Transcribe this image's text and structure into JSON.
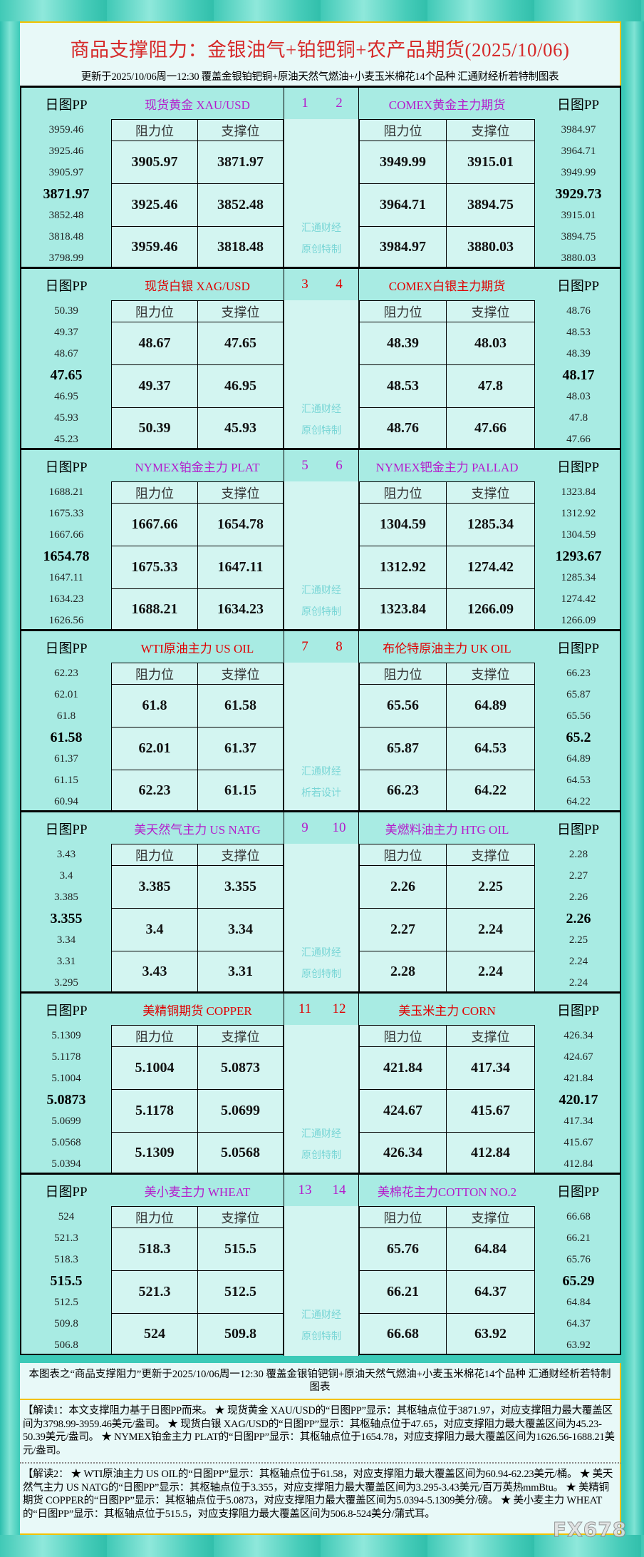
{
  "header": {
    "title": "商品支撑阻力：金银油气+铂钯铜+农产品期货(2025/10/06)",
    "subtitle": "更新于2025/10/06周一12:30  覆盖金银铂钯铜+原油天然气燃油+小麦玉米棉花14个品种  汇通财经析若特制图表"
  },
  "labels": {
    "pp": "日图PP",
    "resistance": "阻力位",
    "support": "支撑位"
  },
  "colors": {
    "purple": "#b41ccc",
    "red": "#e00000",
    "side_bg": "#a8ebe3",
    "cell_bg": "#d3f5f1"
  },
  "blocks": [
    {
      "color": "purple",
      "watermark": [
        "汇通财经",
        "原创特制"
      ],
      "left": {
        "name": "现货黄金 XAU/USD",
        "num": "1",
        "pp": [
          "3959.46",
          "3925.46",
          "3905.97",
          "3871.97",
          "3852.48",
          "3818.48",
          "3798.99"
        ],
        "res": [
          "3905.97",
          "3925.46",
          "3959.46"
        ],
        "sup": [
          "3871.97",
          "3852.48",
          "3818.48"
        ]
      },
      "right": {
        "name": "COMEX黄金主力期货",
        "num": "2",
        "pp": [
          "3984.97",
          "3964.71",
          "3949.99",
          "3929.73",
          "3915.01",
          "3894.75",
          "3880.03"
        ],
        "res": [
          "3949.99",
          "3964.71",
          "3984.97"
        ],
        "sup": [
          "3915.01",
          "3894.75",
          "3880.03"
        ]
      }
    },
    {
      "color": "red",
      "watermark": [
        "汇通财经",
        "原创特制"
      ],
      "left": {
        "name": "现货白银 XAG/USD",
        "num": "3",
        "pp": [
          "50.39",
          "49.37",
          "48.67",
          "47.65",
          "46.95",
          "45.93",
          "45.23"
        ],
        "res": [
          "48.67",
          "49.37",
          "50.39"
        ],
        "sup": [
          "47.65",
          "46.95",
          "45.93"
        ]
      },
      "right": {
        "name": "COMEX白银主力期货",
        "num": "4",
        "pp": [
          "48.76",
          "48.53",
          "48.39",
          "48.17",
          "48.03",
          "47.8",
          "47.66"
        ],
        "res": [
          "48.39",
          "48.53",
          "48.76"
        ],
        "sup": [
          "48.03",
          "47.8",
          "47.66"
        ]
      }
    },
    {
      "color": "purple",
      "watermark": [
        "汇通财经",
        "原创特制"
      ],
      "left": {
        "name": "NYMEX铂金主力 PLAT",
        "num": "5",
        "pp": [
          "1688.21",
          "1675.33",
          "1667.66",
          "1654.78",
          "1647.11",
          "1634.23",
          "1626.56"
        ],
        "res": [
          "1667.66",
          "1675.33",
          "1688.21"
        ],
        "sup": [
          "1654.78",
          "1647.11",
          "1634.23"
        ]
      },
      "right": {
        "name": "NYMEX钯金主力 PALLAD",
        "num": "6",
        "pp": [
          "1323.84",
          "1312.92",
          "1304.59",
          "1293.67",
          "1285.34",
          "1274.42",
          "1266.09"
        ],
        "res": [
          "1304.59",
          "1312.92",
          "1323.84"
        ],
        "sup": [
          "1285.34",
          "1274.42",
          "1266.09"
        ]
      }
    },
    {
      "color": "red",
      "watermark": [
        "汇通财经",
        "析若设计"
      ],
      "left": {
        "name": "WTI原油主力 US OIL",
        "num": "7",
        "pp": [
          "62.23",
          "62.01",
          "61.8",
          "61.58",
          "61.37",
          "61.15",
          "60.94"
        ],
        "res": [
          "61.8",
          "62.01",
          "62.23"
        ],
        "sup": [
          "61.58",
          "61.37",
          "61.15"
        ]
      },
      "right": {
        "name": "布伦特原油主力 UK OIL",
        "num": "8",
        "pp": [
          "66.23",
          "65.87",
          "65.56",
          "65.2",
          "64.89",
          "64.53",
          "64.22"
        ],
        "res": [
          "65.56",
          "65.87",
          "66.23"
        ],
        "sup": [
          "64.89",
          "64.53",
          "64.22"
        ]
      }
    },
    {
      "color": "purple",
      "watermark": [
        "汇通财经",
        "原创特制"
      ],
      "left": {
        "name": "美天然气主力 US NATG",
        "num": "9",
        "pp": [
          "3.43",
          "3.4",
          "3.385",
          "3.355",
          "3.34",
          "3.31",
          "3.295"
        ],
        "res": [
          "3.385",
          "3.4",
          "3.43"
        ],
        "sup": [
          "3.355",
          "3.34",
          "3.31"
        ]
      },
      "right": {
        "name": "美燃料油主力 HTG OIL",
        "num": "10",
        "pp": [
          "2.28",
          "2.27",
          "2.26",
          "2.26",
          "2.25",
          "2.24",
          "2.24"
        ],
        "res": [
          "2.26",
          "2.27",
          "2.28"
        ],
        "sup": [
          "2.25",
          "2.24",
          "2.24"
        ]
      }
    },
    {
      "color": "red",
      "watermark": [
        "汇通财经",
        "原创特制"
      ],
      "left": {
        "name": "美精铜期货 COPPER",
        "num": "11",
        "pp": [
          "5.1309",
          "5.1178",
          "5.1004",
          "5.0873",
          "5.0699",
          "5.0568",
          "5.0394"
        ],
        "res": [
          "5.1004",
          "5.1178",
          "5.1309"
        ],
        "sup": [
          "5.0873",
          "5.0699",
          "5.0568"
        ]
      },
      "right": {
        "name": "美玉米主力 CORN",
        "num": "12",
        "pp": [
          "426.34",
          "424.67",
          "421.84",
          "420.17",
          "417.34",
          "415.67",
          "412.84"
        ],
        "res": [
          "421.84",
          "424.67",
          "426.34"
        ],
        "sup": [
          "417.34",
          "415.67",
          "412.84"
        ]
      }
    },
    {
      "color": "purple",
      "watermark": [
        "汇通财经",
        "原创特制"
      ],
      "left": {
        "name": "美小麦主力 WHEAT",
        "num": "13",
        "pp": [
          "524",
          "521.3",
          "518.3",
          "515.5",
          "512.5",
          "509.8",
          "506.8"
        ],
        "res": [
          "518.3",
          "521.3",
          "524"
        ],
        "sup": [
          "515.5",
          "512.5",
          "509.8"
        ]
      },
      "right": {
        "name": "美棉花主力COTTON NO.2",
        "num": "14",
        "pp": [
          "66.68",
          "66.21",
          "65.76",
          "65.29",
          "64.84",
          "64.37",
          "63.92"
        ],
        "res": [
          "65.76",
          "66.21",
          "66.68"
        ],
        "sup": [
          "64.84",
          "64.37",
          "63.92"
        ]
      }
    }
  ],
  "footer": {
    "note": "本图表之“商品支撑阻力”更新于2025/10/06周一12:30  覆盖金银铂钯铜+原油天然气燃油+小麦玉米棉花14个品种  汇通财经析若特制图表",
    "explain1": "【解读1：本文支撑阻力基于日图PP而来。 ★ 现货黄金 XAU/USD的“日图PP”显示：其枢轴点位于3871.97，对应支撑阻力最大覆盖区间为3798.99-3959.46美元/盎司。 ★ 现货白银 XAG/USD的“日图PP”显示：其枢轴点位于47.65，对应支撑阻力最大覆盖区间为45.23-50.39美元/盎司。 ★ NYMEX铂金主力 PLAT的“日图PP”显示：其枢轴点位于1654.78，对应支撑阻力最大覆盖区间为1626.56-1688.21美元/盎司。",
    "explain2": "【解读2： ★ WTI原油主力 US OIL的“日图PP”显示：其枢轴点位于61.58，对应支撑阻力最大覆盖区间为60.94-62.23美元/桶。 ★ 美天然气主力 US NATG的“日图PP”显示：其枢轴点位于3.355，对应支撑阻力最大覆盖区间为3.295-3.43美元/百万英热mmBtu。 ★ 美精铜期货 COPPER的“日图PP”显示：其枢轴点位于5.0873，对应支撑阻力最大覆盖区间为5.0394-5.1309美分/磅。 ★ 美小麦主力 WHEAT的“日图PP”显示：其枢轴点位于515.5，对应支撑阻力最大覆盖区间为506.8-524美分/蒲式耳。",
    "logo": "FX678"
  }
}
